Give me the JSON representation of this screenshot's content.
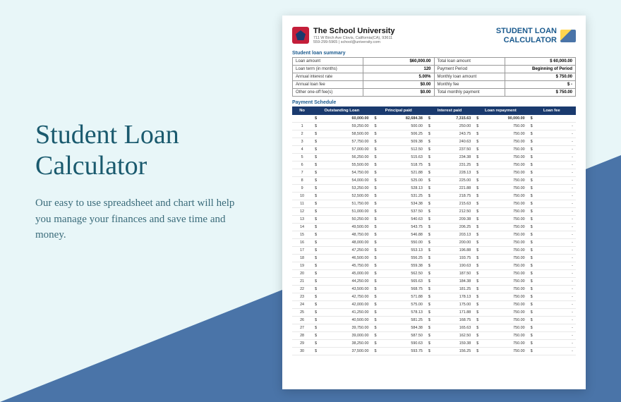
{
  "promo": {
    "title": "Student Loan Calculator",
    "subtitle": "Our easy to use spreadsheet and chart will help you manage your finances and save time and money."
  },
  "doc": {
    "school_name": "The School University",
    "school_address": "711 W Birch Ave Clovis, California(CA), 93611",
    "school_contact": "559-299-5965 | school@university.com",
    "title_line1": "STUDENT LOAN",
    "title_line2": "CALCULATOR",
    "summary_label": "Student loan summary",
    "schedule_label": "Payment Schedule"
  },
  "summary": [
    {
      "l1": "Loan amount",
      "v1": "$60,000.00",
      "l2": "Total loan amount",
      "v2": "$        60,000.00"
    },
    {
      "l1": "Loan term (in months)",
      "v1": "120",
      "l2": "Payment Period",
      "v2": "Beginning of Period"
    },
    {
      "l1": "Annual interest rate",
      "v1": "5.00%",
      "l2": "Monthly loan amount",
      "v2": "$             750.00"
    },
    {
      "l1": "Annual loan fee",
      "v1": "$0.00",
      "l2": "Monthly fee",
      "v2": "$                    -"
    },
    {
      "l1": "Other one-off fee(s)",
      "v1": "$0.00",
      "l2": "Total monthly payment",
      "v2": "$             750.00"
    }
  ],
  "sched_cols": {
    "no": "No",
    "out": "Outstanding Loan",
    "prin": "Principal paid",
    "int": "Interest paid",
    "rep": "Loan repayment",
    "fee": "Loan fee"
  },
  "totals": {
    "out": "60,000.00",
    "prin": "82,684.38",
    "int": "7,315.63",
    "rep": "90,000.00",
    "fee": ""
  },
  "rows": [
    {
      "n": 1,
      "out": "59,250.00",
      "prin": "500.00",
      "int": "250.00",
      "rep": "750.00"
    },
    {
      "n": 2,
      "out": "58,500.00",
      "prin": "506.25",
      "int": "243.75",
      "rep": "750.00"
    },
    {
      "n": 3,
      "out": "57,750.00",
      "prin": "509.38",
      "int": "240.63",
      "rep": "750.00"
    },
    {
      "n": 4,
      "out": "57,000.00",
      "prin": "512.50",
      "int": "237.50",
      "rep": "750.00"
    },
    {
      "n": 5,
      "out": "56,250.00",
      "prin": "515.63",
      "int": "234.38",
      "rep": "750.00"
    },
    {
      "n": 6,
      "out": "55,500.00",
      "prin": "518.75",
      "int": "231.25",
      "rep": "750.00"
    },
    {
      "n": 7,
      "out": "54,750.00",
      "prin": "521.88",
      "int": "228.13",
      "rep": "750.00"
    },
    {
      "n": 8,
      "out": "54,000.00",
      "prin": "525.00",
      "int": "225.00",
      "rep": "750.00"
    },
    {
      "n": 9,
      "out": "53,250.00",
      "prin": "528.13",
      "int": "221.88",
      "rep": "750.00"
    },
    {
      "n": 10,
      "out": "52,500.00",
      "prin": "531.25",
      "int": "218.75",
      "rep": "750.00"
    },
    {
      "n": 11,
      "out": "51,750.00",
      "prin": "534.38",
      "int": "215.63",
      "rep": "750.00"
    },
    {
      "n": 12,
      "out": "51,000.00",
      "prin": "537.50",
      "int": "212.50",
      "rep": "750.00"
    },
    {
      "n": 13,
      "out": "50,250.00",
      "prin": "540.63",
      "int": "209.38",
      "rep": "750.00"
    },
    {
      "n": 14,
      "out": "49,500.00",
      "prin": "543.75",
      "int": "206.25",
      "rep": "750.00"
    },
    {
      "n": 15,
      "out": "48,750.00",
      "prin": "546.88",
      "int": "203.13",
      "rep": "750.00"
    },
    {
      "n": 16,
      "out": "48,000.00",
      "prin": "550.00",
      "int": "200.00",
      "rep": "750.00"
    },
    {
      "n": 17,
      "out": "47,250.00",
      "prin": "553.13",
      "int": "196.88",
      "rep": "750.00"
    },
    {
      "n": 18,
      "out": "46,500.00",
      "prin": "556.25",
      "int": "193.75",
      "rep": "750.00"
    },
    {
      "n": 19,
      "out": "45,750.00",
      "prin": "559.38",
      "int": "190.63",
      "rep": "750.00"
    },
    {
      "n": 20,
      "out": "45,000.00",
      "prin": "562.50",
      "int": "187.50",
      "rep": "750.00"
    },
    {
      "n": 21,
      "out": "44,250.00",
      "prin": "565.63",
      "int": "184.38",
      "rep": "750.00"
    },
    {
      "n": 22,
      "out": "43,500.00",
      "prin": "568.75",
      "int": "181.25",
      "rep": "750.00"
    },
    {
      "n": 23,
      "out": "42,750.00",
      "prin": "571.88",
      "int": "178.13",
      "rep": "750.00"
    },
    {
      "n": 24,
      "out": "42,000.00",
      "prin": "575.00",
      "int": "175.00",
      "rep": "750.00"
    },
    {
      "n": 25,
      "out": "41,250.00",
      "prin": "578.13",
      "int": "171.88",
      "rep": "750.00"
    },
    {
      "n": 26,
      "out": "40,500.00",
      "prin": "581.25",
      "int": "168.75",
      "rep": "750.00"
    },
    {
      "n": 27,
      "out": "39,750.00",
      "prin": "584.38",
      "int": "165.63",
      "rep": "750.00"
    },
    {
      "n": 28,
      "out": "39,000.00",
      "prin": "587.50",
      "int": "162.50",
      "rep": "750.00"
    },
    {
      "n": 29,
      "out": "38,250.00",
      "prin": "590.63",
      "int": "159.38",
      "rep": "750.00"
    },
    {
      "n": 30,
      "out": "37,500.00",
      "prin": "593.75",
      "int": "156.25",
      "rep": "750.00"
    }
  ]
}
